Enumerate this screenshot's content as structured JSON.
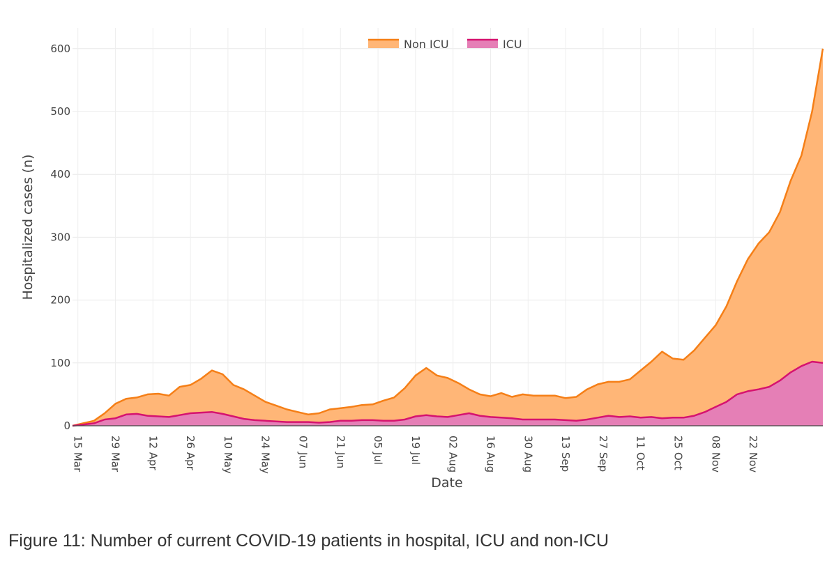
{
  "chart_data": {
    "type": "area",
    "stacked": true,
    "xlabel": "Date",
    "ylabel": "Hospitalized cases (n)",
    "ylim": [
      0,
      630
    ],
    "yticks": [
      0,
      100,
      200,
      300,
      400,
      500,
      600
    ],
    "x_start": "2020-03-13",
    "x_end": "2020-12-05",
    "xtick_labels": [
      "15 Mar",
      "29 Mar",
      "12 Apr",
      "26 Apr",
      "10 May",
      "24 May",
      "07 Jun",
      "21 Jun",
      "05 Jul",
      "19 Jul",
      "02 Aug",
      "16 Aug",
      "30 Aug",
      "13 Sep",
      "27 Sep",
      "11 Oct",
      "25 Oct",
      "08 Nov",
      "22 Nov"
    ],
    "xtick_day_index": [
      2,
      16,
      30,
      44,
      58,
      72,
      86,
      100,
      114,
      128,
      142,
      156,
      170,
      184,
      198,
      212,
      226,
      240,
      254
    ],
    "grid": true,
    "legend_position": "top-center",
    "series": [
      {
        "name": "Non ICU",
        "color_line": "#f57f17",
        "color_fill": "#ffb677",
        "points": [
          [
            0,
            0
          ],
          [
            4,
            4
          ],
          [
            8,
            8
          ],
          [
            12,
            20
          ],
          [
            16,
            35
          ],
          [
            20,
            43
          ],
          [
            24,
            45
          ],
          [
            28,
            50
          ],
          [
            32,
            51
          ],
          [
            36,
            48
          ],
          [
            40,
            62
          ],
          [
            44,
            65
          ],
          [
            48,
            75
          ],
          [
            52,
            88
          ],
          [
            56,
            82
          ],
          [
            60,
            65
          ],
          [
            64,
            58
          ],
          [
            68,
            48
          ],
          [
            72,
            38
          ],
          [
            76,
            32
          ],
          [
            80,
            26
          ],
          [
            84,
            22
          ],
          [
            88,
            18
          ],
          [
            92,
            20
          ],
          [
            96,
            26
          ],
          [
            100,
            28
          ],
          [
            104,
            30
          ],
          [
            108,
            33
          ],
          [
            112,
            34
          ],
          [
            116,
            40
          ],
          [
            120,
            45
          ],
          [
            124,
            60
          ],
          [
            128,
            80
          ],
          [
            132,
            92
          ],
          [
            136,
            80
          ],
          [
            140,
            76
          ],
          [
            144,
            68
          ],
          [
            148,
            58
          ],
          [
            152,
            50
          ],
          [
            156,
            47
          ],
          [
            160,
            52
          ],
          [
            164,
            46
          ],
          [
            168,
            50
          ],
          [
            172,
            48
          ],
          [
            176,
            48
          ],
          [
            180,
            48
          ],
          [
            184,
            44
          ],
          [
            188,
            46
          ],
          [
            192,
            58
          ],
          [
            196,
            66
          ],
          [
            200,
            70
          ],
          [
            204,
            70
          ],
          [
            208,
            74
          ],
          [
            212,
            88
          ],
          [
            216,
            102
          ],
          [
            220,
            118
          ],
          [
            224,
            107
          ],
          [
            228,
            105
          ],
          [
            232,
            120
          ],
          [
            236,
            140
          ],
          [
            240,
            160
          ],
          [
            244,
            190
          ],
          [
            248,
            230
          ],
          [
            252,
            265
          ],
          [
            256,
            290
          ],
          [
            260,
            308
          ],
          [
            264,
            340
          ],
          [
            268,
            390
          ],
          [
            272,
            430
          ],
          [
            276,
            500
          ],
          [
            280,
            600
          ]
        ]
      },
      {
        "name": "ICU",
        "color_line": "#d6136f",
        "color_fill": "#e57fb6",
        "points": [
          [
            0,
            0
          ],
          [
            4,
            2
          ],
          [
            8,
            4
          ],
          [
            12,
            10
          ],
          [
            16,
            12
          ],
          [
            20,
            18
          ],
          [
            24,
            19
          ],
          [
            28,
            16
          ],
          [
            32,
            15
          ],
          [
            36,
            14
          ],
          [
            40,
            17
          ],
          [
            44,
            20
          ],
          [
            48,
            21
          ],
          [
            52,
            22
          ],
          [
            56,
            19
          ],
          [
            60,
            15
          ],
          [
            64,
            11
          ],
          [
            68,
            9
          ],
          [
            72,
            8
          ],
          [
            76,
            7
          ],
          [
            80,
            6
          ],
          [
            84,
            6
          ],
          [
            88,
            6
          ],
          [
            92,
            5
          ],
          [
            96,
            6
          ],
          [
            100,
            8
          ],
          [
            104,
            8
          ],
          [
            108,
            9
          ],
          [
            112,
            9
          ],
          [
            116,
            8
          ],
          [
            120,
            8
          ],
          [
            124,
            10
          ],
          [
            128,
            15
          ],
          [
            132,
            17
          ],
          [
            136,
            15
          ],
          [
            140,
            14
          ],
          [
            144,
            17
          ],
          [
            148,
            20
          ],
          [
            152,
            16
          ],
          [
            156,
            14
          ],
          [
            160,
            13
          ],
          [
            164,
            12
          ],
          [
            168,
            10
          ],
          [
            172,
            10
          ],
          [
            176,
            10
          ],
          [
            180,
            10
          ],
          [
            184,
            9
          ],
          [
            188,
            8
          ],
          [
            192,
            10
          ],
          [
            196,
            13
          ],
          [
            200,
            16
          ],
          [
            204,
            14
          ],
          [
            208,
            15
          ],
          [
            212,
            13
          ],
          [
            216,
            14
          ],
          [
            220,
            12
          ],
          [
            224,
            13
          ],
          [
            228,
            13
          ],
          [
            232,
            16
          ],
          [
            236,
            22
          ],
          [
            240,
            30
          ],
          [
            244,
            38
          ],
          [
            248,
            50
          ],
          [
            252,
            55
          ],
          [
            256,
            58
          ],
          [
            260,
            62
          ],
          [
            264,
            72
          ],
          [
            268,
            85
          ],
          [
            272,
            95
          ],
          [
            276,
            102
          ],
          [
            280,
            100
          ]
        ]
      }
    ]
  },
  "caption": "Figure 11: Number of current COVID-19 patients in hospital, ICU and non-ICU"
}
